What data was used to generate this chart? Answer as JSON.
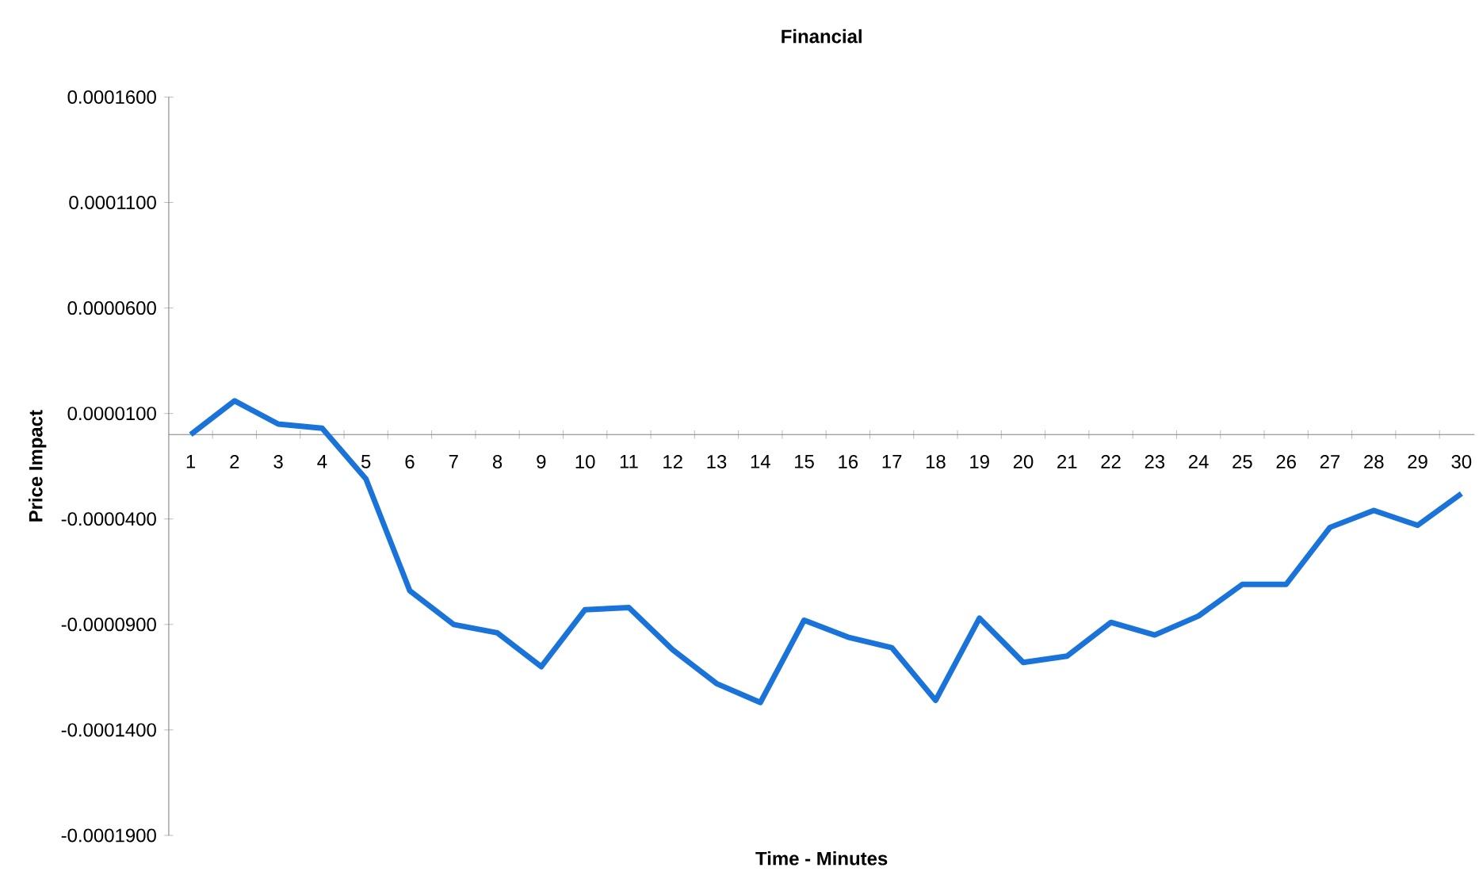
{
  "chart_data": {
    "type": "line",
    "title": "Financial",
    "xlabel": "Time - Minutes",
    "ylabel": "Price Impact",
    "categories": [
      "1",
      "2",
      "3",
      "4",
      "5",
      "6",
      "7",
      "8",
      "9",
      "10",
      "11",
      "12",
      "13",
      "14",
      "15",
      "16",
      "17",
      "18",
      "19",
      "20",
      "21",
      "22",
      "23",
      "24",
      "25",
      "26",
      "27",
      "28",
      "29",
      "30"
    ],
    "series": [
      {
        "color": "#1a73d9",
        "values": [
          0,
          1.6e-05,
          5e-06,
          3e-06,
          -2.1e-05,
          -7.4e-05,
          -9e-05,
          -9.4e-05,
          -0.00011,
          -8.3e-05,
          -8.2e-05,
          -0.000102,
          -0.000118,
          -0.000127,
          -8.8e-05,
          -9.6e-05,
          -0.000101,
          -0.000126,
          -8.7e-05,
          -0.000108,
          -0.000105,
          -8.9e-05,
          -9.5e-05,
          -8.6e-05,
          -7.1e-05,
          -7.1e-05,
          -4.4e-05,
          -3.6e-05,
          -4.3e-05,
          -2.8e-05
        ]
      }
    ],
    "ylim": [
      -0.00019,
      0.00016
    ],
    "yticks": [
      {
        "value": -0.00019,
        "label": "-0.0001900"
      },
      {
        "value": -0.00014,
        "label": "-0.0001400"
      },
      {
        "value": -9e-05,
        "label": "-0.0000900"
      },
      {
        "value": -4e-05,
        "label": "-0.0000400"
      },
      {
        "value": 1e-05,
        "label": "0.0000100"
      },
      {
        "value": 6e-05,
        "label": "0.0000600"
      },
      {
        "value": 0.00011,
        "label": "0.0001100"
      },
      {
        "value": 0.00016,
        "label": "0.0001600"
      }
    ],
    "grid": false,
    "marker": "none",
    "line_style": "solid"
  }
}
